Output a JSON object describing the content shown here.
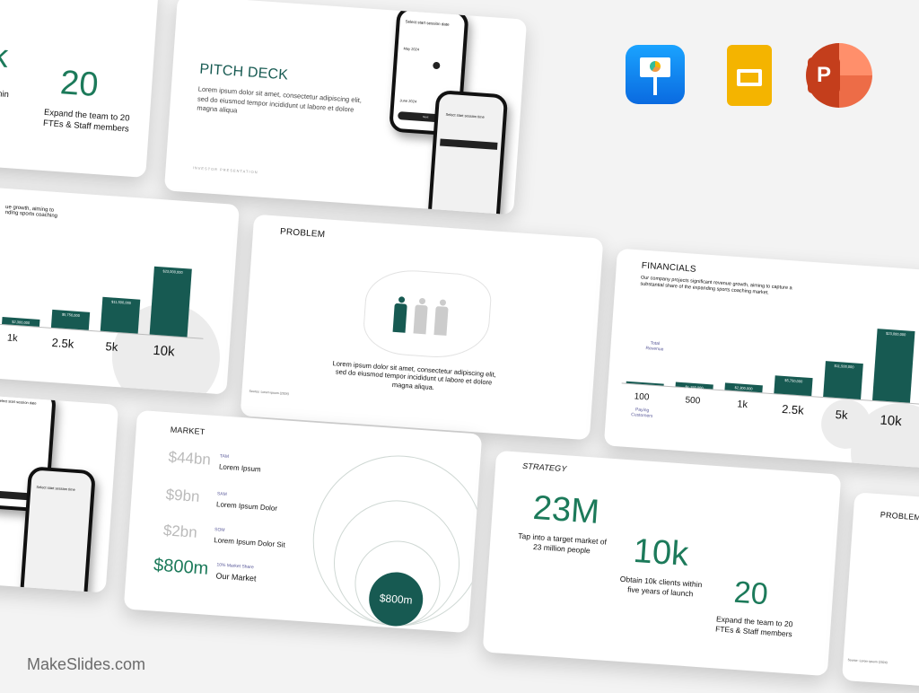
{
  "brand": {
    "watermark": "MakeSlides.com",
    "accent": "#1c7a5a",
    "bar_color": "#175a52"
  },
  "app_icons": [
    {
      "name": "keynote-icon"
    },
    {
      "name": "google-slides-icon"
    },
    {
      "name": "powerpoint-icon",
      "letter": "P"
    }
  ],
  "strategy_partial": {
    "big1": "k",
    "cap1": "s within\nnch",
    "big2": "20",
    "cap2": "Expand the team to 20\nFTEs & Staff members"
  },
  "pitch": {
    "title": "PITCH DECK",
    "body": "Lorem ipsum dolor sit amet, consectetur adipiscing elit, sed do eiusmod tempor incididunt ut labore et dolore magna aliqua",
    "footer": "INVESTOR PRESENTATION",
    "phone1_title": "Select start session date",
    "phone1_month1": "May 2024",
    "phone1_month2": "June 2024",
    "phone1_button": "Next",
    "phone2_title": "Select start session time"
  },
  "financials_partial": {
    "desc": "ue growth, aiming to\nnding sports coaching",
    "bars": [
      "$2,300,000",
      "$5,750,000",
      "$11,500,000",
      "$23,000,000"
    ],
    "labels": [
      "1k",
      "2.5k",
      "5k",
      "10k"
    ]
  },
  "problem": {
    "title": "PROBLEM",
    "body": "Lorem ipsum dolor sit amet, consectetur adipiscing elit, sed do eiusmod tempor incididunt ut labore et dolore magna aliqua.",
    "source": "Source: Lorem ipsum (2024)"
  },
  "financials": {
    "title": "FINANCIALS",
    "desc": "Our company projects significant revenue growth, aiming to capture a substantial share of the expanding sports coaching market.",
    "revenue_label": "Total Revenue",
    "customers_label": "Paying Customers",
    "bars": [
      "",
      "$1,150,000",
      "$2,300,000",
      "$5,750,000",
      "$11,500,000",
      "$23,000,000"
    ],
    "labels": [
      "100",
      "500",
      "1k",
      "2.5k",
      "5k",
      "10k"
    ]
  },
  "phone_partial": {
    "title": "Select start session date",
    "title2": "Select start session time"
  },
  "market": {
    "title": "MARKET",
    "rows": [
      {
        "value": "$44bn",
        "tag": "TAM",
        "label": "Lorem Ipsum"
      },
      {
        "value": "$9bn",
        "tag": "SAM",
        "label": "Lorem Ipsum Dolor"
      },
      {
        "value": "$2bn",
        "tag": "SOM",
        "label": "Lorem Ipsum Dolor Sit"
      },
      {
        "value": "$800m",
        "tag": "10% Market Share",
        "label": "Our Market"
      }
    ],
    "bubble": "$800m"
  },
  "strategy": {
    "title": "STRATEGY",
    "stats": [
      {
        "value": "23M",
        "caption": "Tap into a target market of 23 million people"
      },
      {
        "value": "10k",
        "caption": "Obtain 10k clients within five years of launch"
      },
      {
        "value": "20",
        "caption": "Expand the team to 20 FTEs & Staff members"
      }
    ]
  },
  "problem_partial": {
    "title": "PROBLEM",
    "source": "Source: Lorem ipsum (2024)"
  }
}
